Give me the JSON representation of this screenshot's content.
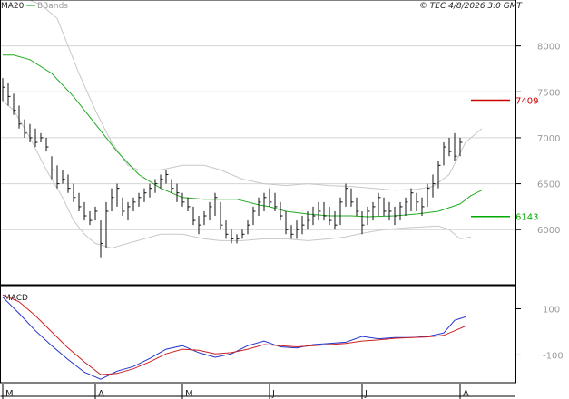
{
  "header": {
    "indicator_1": "MA20",
    "indicator_2": "BBands",
    "copyright_info": "© TEC 4/8/2026 3:0 GMT"
  },
  "colors": {
    "price_bars": "#111111",
    "ma20": "#22aa22",
    "bbands": "#c8c8c8",
    "grid": "#d4d4d4",
    "macd_line": "#2233cc",
    "signal_line": "#cc2222",
    "resistance": "#cc0000",
    "support": "#00aa00",
    "frame": "#000000"
  },
  "chart_data": [
    {
      "type": "ohlc",
      "legend": [
        "MA20",
        "BBands"
      ],
      "ylim": [
        5400,
        8500
      ],
      "y_ticks": [
        {
          "value": 8000,
          "label": "8000"
        },
        {
          "value": 7500,
          "label": "7500"
        },
        {
          "value": 7000,
          "label": "7000"
        },
        {
          "value": 6500,
          "label": "6500"
        },
        {
          "value": 6000,
          "label": "6000"
        }
      ],
      "levels": [
        {
          "name": "resistance",
          "value": 7409,
          "label": "7409"
        },
        {
          "name": "support",
          "value": 6143,
          "label": "6143"
        }
      ],
      "bars": [
        [
          7650,
          7400,
          7550
        ],
        [
          7600,
          7350,
          7450
        ],
        [
          7480,
          7250,
          7300
        ],
        [
          7350,
          7100,
          7150
        ],
        [
          7200,
          7000,
          7050
        ],
        [
          7150,
          6950,
          7000
        ],
        [
          7100,
          6900,
          6950
        ],
        [
          7050,
          6950,
          7000
        ],
        [
          7000,
          6850,
          6900
        ],
        [
          6800,
          6550,
          6650
        ],
        [
          6700,
          6450,
          6500
        ],
        [
          6650,
          6500,
          6550
        ],
        [
          6600,
          6400,
          6450
        ],
        [
          6500,
          6300,
          6350
        ],
        [
          6400,
          6200,
          6250
        ],
        [
          6300,
          6100,
          6150
        ],
        [
          6200,
          6050,
          6100
        ],
        [
          6250,
          6100,
          6200
        ],
        [
          6100,
          5700,
          5850
        ],
        [
          6300,
          5800,
          6200
        ],
        [
          6450,
          6200,
          6350
        ],
        [
          6500,
          6250,
          6450
        ],
        [
          6350,
          6150,
          6200
        ],
        [
          6300,
          6100,
          6250
        ],
        [
          6350,
          6200,
          6300
        ],
        [
          6400,
          6250,
          6350
        ],
        [
          6450,
          6300,
          6400
        ],
        [
          6500,
          6350,
          6450
        ],
        [
          6550,
          6400,
          6500
        ],
        [
          6600,
          6450,
          6550
        ],
        [
          6650,
          6500,
          6600
        ],
        [
          6550,
          6400,
          6450
        ],
        [
          6500,
          6300,
          6400
        ],
        [
          6400,
          6250,
          6300
        ],
        [
          6350,
          6200,
          6250
        ],
        [
          6250,
          6050,
          6100
        ],
        [
          6150,
          5950,
          6050
        ],
        [
          6200,
          6050,
          6150
        ],
        [
          6300,
          6100,
          6250
        ],
        [
          6400,
          6150,
          6350
        ],
        [
          6300,
          6000,
          6050
        ],
        [
          6100,
          5900,
          5950
        ],
        [
          6000,
          5850,
          5900
        ],
        [
          5950,
          5850,
          5900
        ],
        [
          6000,
          5900,
          5950
        ],
        [
          6100,
          5950,
          6050
        ],
        [
          6250,
          6050,
          6200
        ],
        [
          6350,
          6150,
          6300
        ],
        [
          6400,
          6200,
          6350
        ],
        [
          6450,
          6250,
          6300
        ],
        [
          6400,
          6200,
          6250
        ],
        [
          6300,
          6100,
          6150
        ],
        [
          6200,
          5950,
          6000
        ],
        [
          6050,
          5900,
          5950
        ],
        [
          6100,
          5900,
          6000
        ],
        [
          6150,
          5950,
          6050
        ],
        [
          6200,
          6000,
          6100
        ],
        [
          6250,
          6050,
          6150
        ],
        [
          6300,
          6100,
          6200
        ],
        [
          6300,
          6100,
          6150
        ],
        [
          6250,
          6050,
          6100
        ],
        [
          6200,
          6000,
          6050
        ],
        [
          6350,
          6050,
          6300
        ],
        [
          6500,
          6250,
          6450
        ],
        [
          6450,
          6250,
          6300
        ],
        [
          6350,
          6150,
          6200
        ],
        [
          6200,
          5950,
          6050
        ],
        [
          6250,
          6050,
          6200
        ],
        [
          6300,
          6100,
          6250
        ],
        [
          6400,
          6150,
          6350
        ],
        [
          6350,
          6150,
          6200
        ],
        [
          6300,
          6100,
          6200
        ],
        [
          6250,
          6050,
          6150
        ],
        [
          6300,
          6100,
          6250
        ],
        [
          6350,
          6150,
          6300
        ],
        [
          6450,
          6200,
          6400
        ],
        [
          6400,
          6200,
          6300
        ],
        [
          6350,
          6150,
          6250
        ],
        [
          6500,
          6250,
          6450
        ],
        [
          6600,
          6350,
          6500
        ],
        [
          6750,
          6450,
          6700
        ],
        [
          6950,
          6700,
          6900
        ],
        [
          7000,
          6800,
          6850
        ],
        [
          7050,
          6750,
          6800
        ],
        [
          7000,
          6800,
          6950
        ]
      ],
      "ma20": [
        [
          0,
          7900
        ],
        [
          2,
          7900
        ],
        [
          5,
          7850
        ],
        [
          9,
          7700
        ],
        [
          13,
          7450
        ],
        [
          17,
          7150
        ],
        [
          21,
          6850
        ],
        [
          25,
          6600
        ],
        [
          29,
          6450
        ],
        [
          33,
          6350
        ],
        [
          37,
          6330
        ],
        [
          40,
          6330
        ],
        [
          43,
          6330
        ],
        [
          45,
          6300
        ],
        [
          47,
          6270
        ],
        [
          49,
          6250
        ],
        [
          52,
          6200
        ],
        [
          56,
          6170
        ],
        [
          60,
          6150
        ],
        [
          64,
          6150
        ],
        [
          67,
          6140
        ],
        [
          72,
          6150
        ],
        [
          76,
          6170
        ],
        [
          80,
          6200
        ],
        [
          84,
          6280
        ],
        [
          86,
          6370
        ],
        [
          88,
          6430
        ]
      ],
      "bb_upper": [
        [
          0,
          8500
        ],
        [
          5,
          8500
        ],
        [
          7,
          8450
        ],
        [
          10,
          8300
        ],
        [
          12,
          8000
        ],
        [
          14,
          7700
        ],
        [
          17,
          7300
        ],
        [
          20,
          6950
        ],
        [
          23,
          6700
        ],
        [
          25,
          6650
        ],
        [
          29,
          6650
        ],
        [
          33,
          6700
        ],
        [
          37,
          6700
        ],
        [
          40,
          6650
        ],
        [
          44,
          6550
        ],
        [
          48,
          6500
        ],
        [
          52,
          6480
        ],
        [
          56,
          6500
        ],
        [
          60,
          6480
        ],
        [
          64,
          6470
        ],
        [
          68,
          6450
        ],
        [
          72,
          6430
        ],
        [
          76,
          6440
        ],
        [
          79,
          6470
        ],
        [
          82,
          6600
        ],
        [
          85,
          6950
        ],
        [
          88,
          7100
        ]
      ],
      "bb_lower": [
        [
          0,
          7400
        ],
        [
          2,
          7300
        ],
        [
          5,
          7000
        ],
        [
          8,
          6650
        ],
        [
          11,
          6350
        ],
        [
          13,
          6100
        ],
        [
          15,
          5950
        ],
        [
          17,
          5850
        ],
        [
          20,
          5800
        ],
        [
          23,
          5850
        ],
        [
          26,
          5900
        ],
        [
          29,
          5950
        ],
        [
          33,
          5950
        ],
        [
          37,
          5900
        ],
        [
          40,
          5880
        ],
        [
          44,
          5880
        ],
        [
          48,
          5900
        ],
        [
          52,
          5900
        ],
        [
          56,
          5880
        ],
        [
          60,
          5900
        ],
        [
          63,
          5920
        ],
        [
          66,
          5960
        ],
        [
          70,
          6000
        ],
        [
          74,
          6020
        ],
        [
          77,
          6030
        ],
        [
          80,
          6040
        ],
        [
          82,
          6000
        ],
        [
          84,
          5900
        ],
        [
          86,
          5920
        ]
      ]
    },
    {
      "type": "line",
      "title": "MACD",
      "ylim": [
        -220,
        200
      ],
      "y_ticks": [
        {
          "value": 100,
          "label": "100"
        },
        {
          "value": -100,
          "label": "-100"
        }
      ],
      "series": [
        {
          "name": "MACD",
          "color_key": "macd_line",
          "points": [
            [
              0,
              150
            ],
            [
              3,
              80
            ],
            [
              6,
              5
            ],
            [
              9,
              -60
            ],
            [
              12,
              -120
            ],
            [
              15,
              -175
            ],
            [
              18,
              -205
            ],
            [
              21,
              -170
            ],
            [
              24,
              -150
            ],
            [
              27,
              -115
            ],
            [
              30,
              -75
            ],
            [
              33,
              -60
            ],
            [
              36,
              -90
            ],
            [
              39,
              -110
            ],
            [
              42,
              -95
            ],
            [
              45,
              -60
            ],
            [
              48,
              -40
            ],
            [
              51,
              -65
            ],
            [
              54,
              -70
            ],
            [
              57,
              -55
            ],
            [
              60,
              -50
            ],
            [
              63,
              -45
            ],
            [
              66,
              -20
            ],
            [
              69,
              -30
            ],
            [
              72,
              -25
            ],
            [
              75,
              -25
            ],
            [
              78,
              -20
            ],
            [
              81,
              -5
            ],
            [
              83,
              50
            ],
            [
              85,
              65
            ]
          ]
        },
        {
          "name": "Signal",
          "color_key": "signal_line",
          "points": [
            [
              0,
              160
            ],
            [
              3,
              130
            ],
            [
              6,
              70
            ],
            [
              9,
              0
            ],
            [
              12,
              -70
            ],
            [
              15,
              -130
            ],
            [
              18,
              -185
            ],
            [
              21,
              -180
            ],
            [
              24,
              -160
            ],
            [
              27,
              -130
            ],
            [
              30,
              -95
            ],
            [
              33,
              -75
            ],
            [
              36,
              -80
            ],
            [
              39,
              -95
            ],
            [
              42,
              -90
            ],
            [
              45,
              -75
            ],
            [
              48,
              -55
            ],
            [
              51,
              -60
            ],
            [
              54,
              -65
            ],
            [
              57,
              -60
            ],
            [
              60,
              -55
            ],
            [
              63,
              -50
            ],
            [
              66,
              -40
            ],
            [
              69,
              -35
            ],
            [
              72,
              -28
            ],
            [
              75,
              -25
            ],
            [
              78,
              -22
            ],
            [
              81,
              -15
            ],
            [
              83,
              5
            ],
            [
              85,
              25
            ]
          ]
        }
      ]
    }
  ],
  "x_axis": [
    {
      "index": 0,
      "label": "M"
    },
    {
      "index": 17,
      "label": "A"
    },
    {
      "index": 33,
      "label": "M"
    },
    {
      "index": 49,
      "label": "J"
    },
    {
      "index": 66,
      "label": "J"
    },
    {
      "index": 84,
      "label": "A"
    }
  ]
}
